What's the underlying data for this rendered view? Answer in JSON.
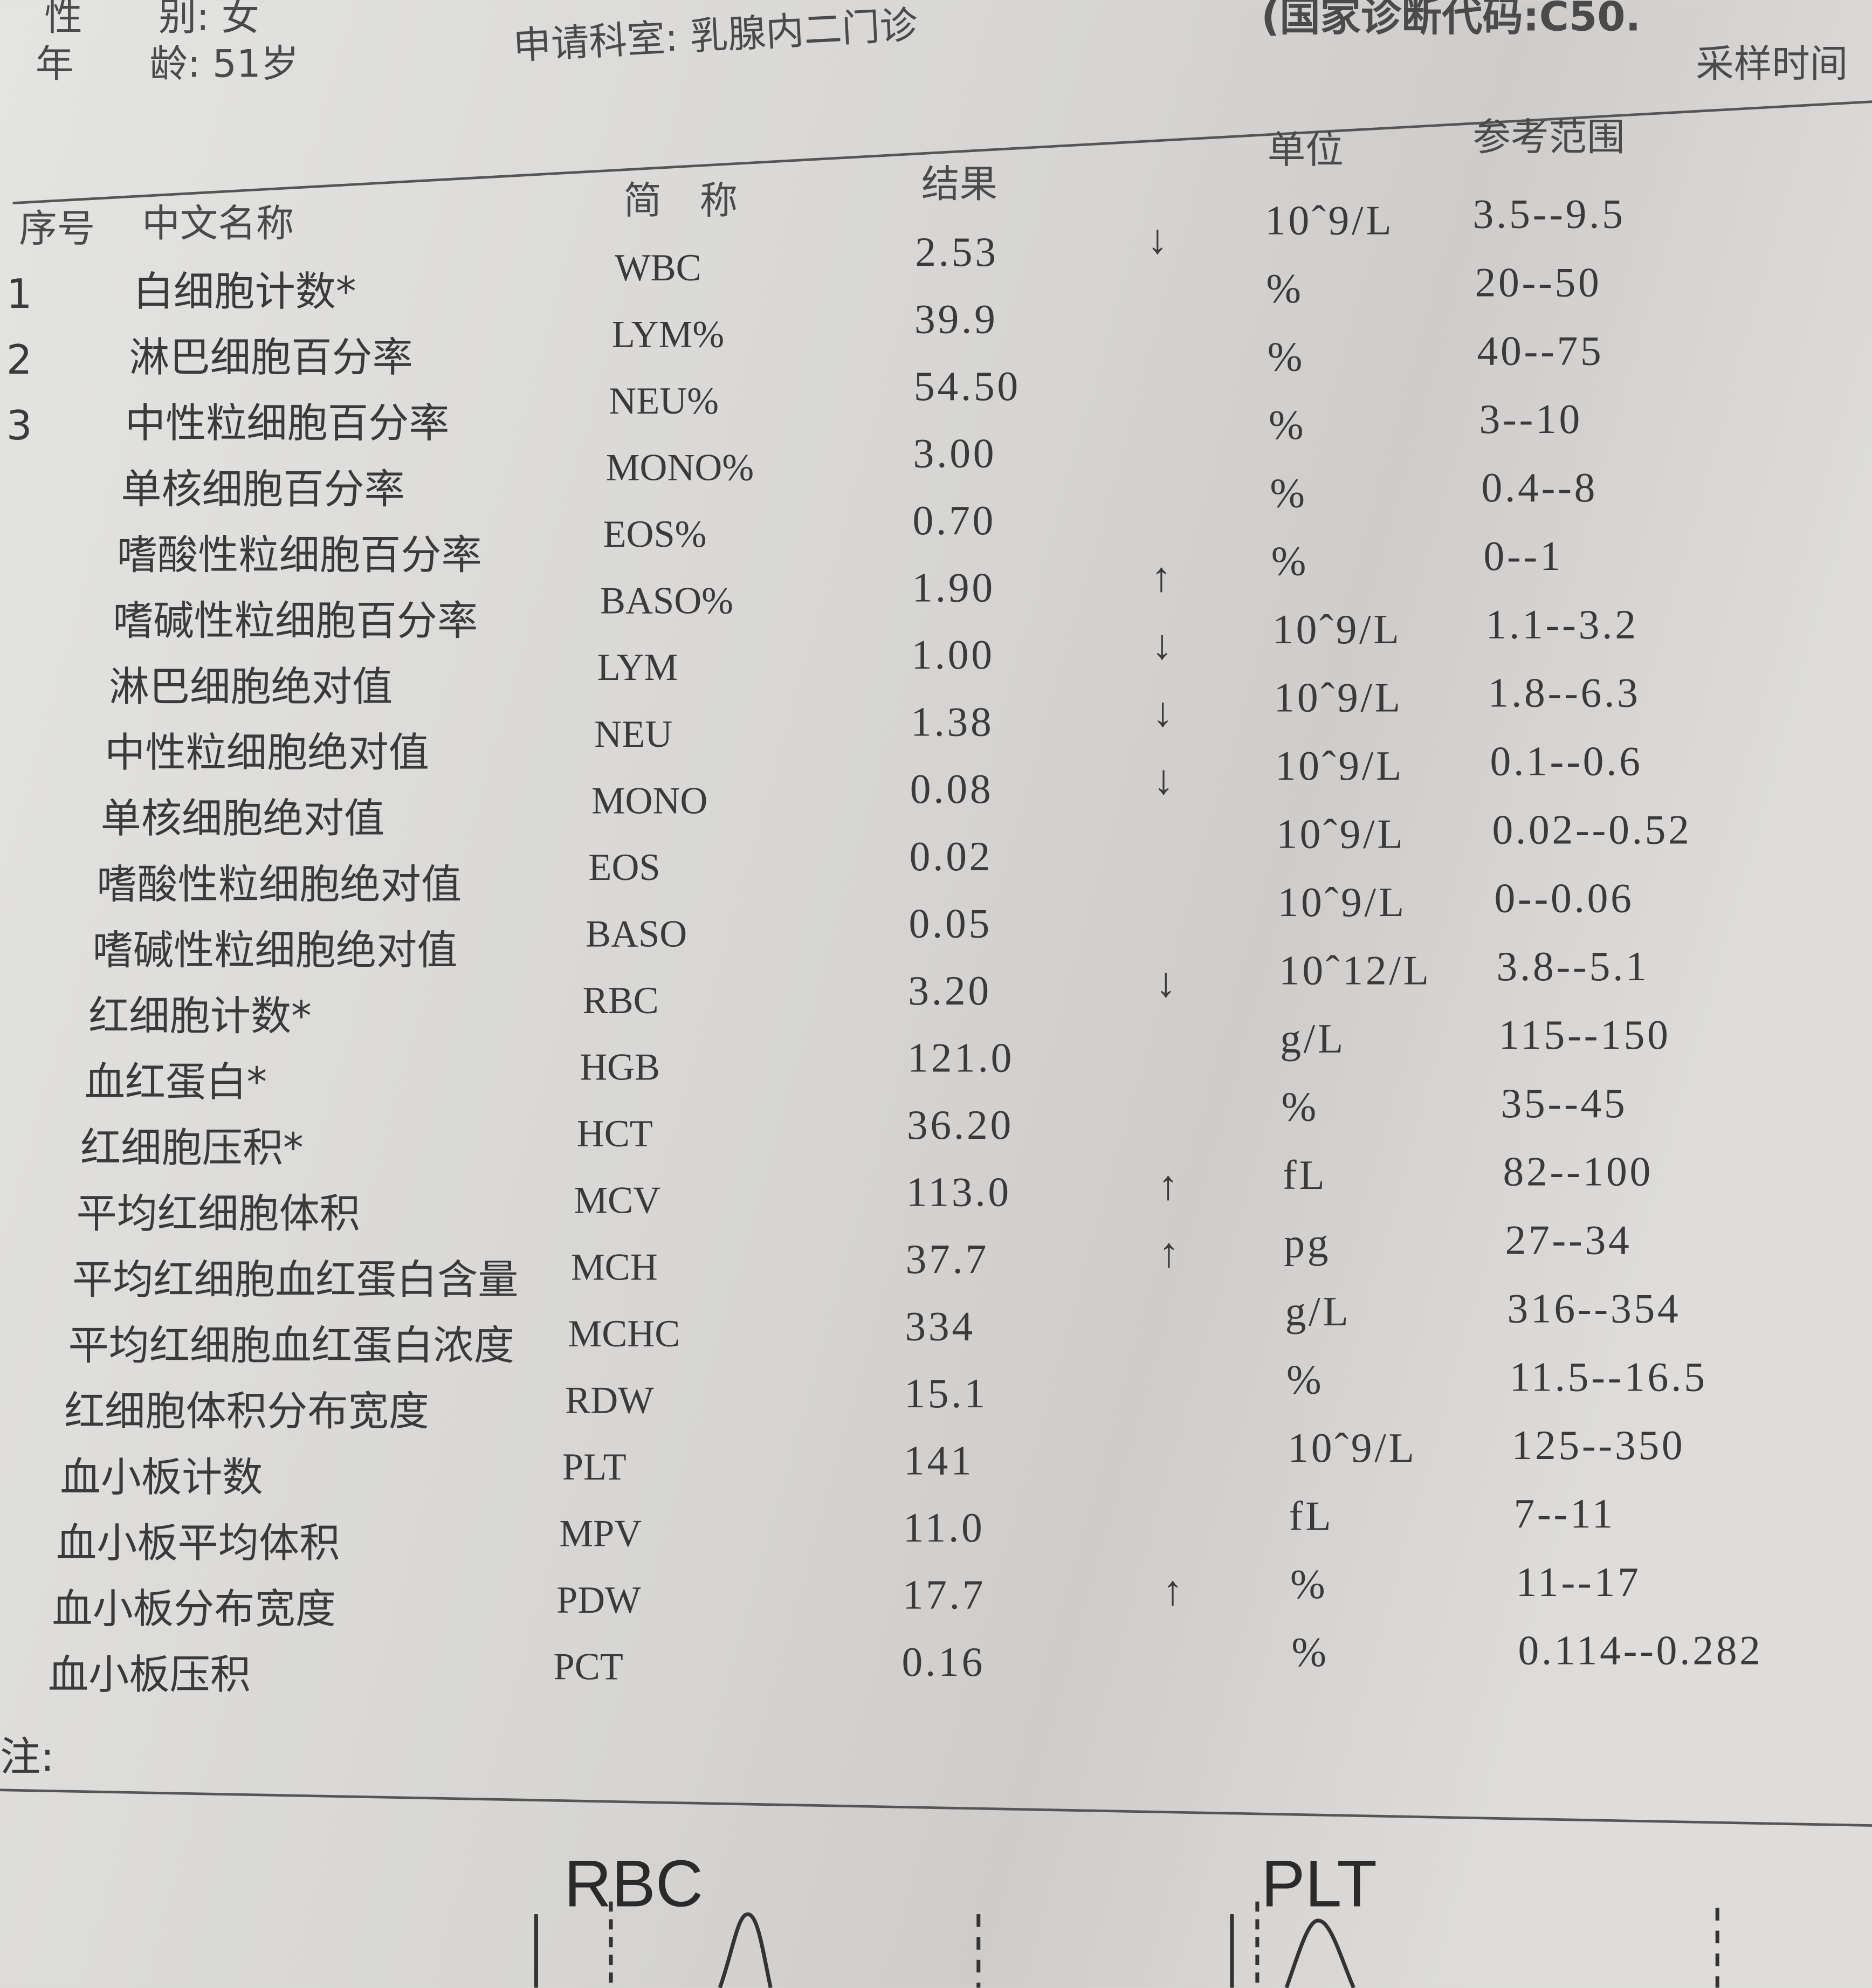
{
  "header": {
    "sex": "性　　别: 女",
    "age": "年　　龄: 51岁",
    "department": "申请科室: 乳腺内二门诊",
    "diagnosis_code": "(国家诊断代码:C50.",
    "sampling_time": "采样时间"
  },
  "table": {
    "columns": {
      "no": "序号",
      "name": "中文名称",
      "abbr": "简　称",
      "result": "结果",
      "unit": "单位",
      "range": "参考范围"
    },
    "rows": [
      {
        "no": "1",
        "name": "白细胞计数*",
        "abbr": "WBC",
        "result": "2.53",
        "flag": "↓",
        "unit": "10ˆ9/L",
        "range": "3.5--9.5"
      },
      {
        "no": "2",
        "name": "淋巴细胞百分率",
        "abbr": "LYM%",
        "result": "39.9",
        "unit": "%",
        "range": "20--50"
      },
      {
        "no": "3",
        "name": "中性粒细胞百分率",
        "abbr": "NEU%",
        "result": "54.50",
        "unit": "%",
        "range": "40--75"
      },
      {
        "name": "单核细胞百分率",
        "abbr": "MONO%",
        "result": "3.00",
        "unit": "%",
        "range": "3--10"
      },
      {
        "name": "嗜酸性粒细胞百分率",
        "abbr": "EOS%",
        "result": "0.70",
        "unit": "%",
        "range": "0.4--8"
      },
      {
        "name": "嗜碱性粒细胞百分率",
        "abbr": "BASO%",
        "result": "1.90",
        "flag": "↑",
        "unit": "%",
        "range": "0--1"
      },
      {
        "name": "淋巴细胞绝对值",
        "abbr": "LYM",
        "result": "1.00",
        "flag": "↓",
        "unit": "10ˆ9/L",
        "range": "1.1--3.2"
      },
      {
        "name": "中性粒细胞绝对值",
        "abbr": "NEU",
        "result": "1.38",
        "flag": "↓",
        "unit": "10ˆ9/L",
        "range": "1.8--6.3"
      },
      {
        "name": "单核细胞绝对值",
        "abbr": "MONO",
        "result": "0.08",
        "flag": "↓",
        "unit": "10ˆ9/L",
        "range": "0.1--0.6"
      },
      {
        "name": "嗜酸性粒细胞绝对值",
        "abbr": "EOS",
        "result": "0.02",
        "unit": "10ˆ9/L",
        "range": "0.02--0.52"
      },
      {
        "name": "嗜碱性粒细胞绝对值",
        "abbr": "BASO",
        "result": "0.05",
        "unit": "10ˆ9/L",
        "range": "0--0.06"
      },
      {
        "name": "红细胞计数*",
        "abbr": "RBC",
        "result": "3.20",
        "flag": "↓",
        "unit": "10ˆ12/L",
        "range": "3.8--5.1"
      },
      {
        "name": "血红蛋白*",
        "abbr": "HGB",
        "result": "121.0",
        "unit": "g/L",
        "range": "115--150"
      },
      {
        "name": "红细胞压积*",
        "abbr": "HCT",
        "result": "36.20",
        "unit": "%",
        "range": "35--45"
      },
      {
        "name": "平均红细胞体积",
        "abbr": "MCV",
        "result": "113.0",
        "flag": "↑",
        "unit": "fL",
        "range": "82--100"
      },
      {
        "name": "平均红细胞血红蛋白含量",
        "abbr": "MCH",
        "result": "37.7",
        "flag": "↑",
        "unit": "pg",
        "range": "27--34"
      },
      {
        "name": "平均红细胞血红蛋白浓度",
        "abbr": "MCHC",
        "result": "334",
        "unit": "g/L",
        "range": "316--354"
      },
      {
        "name": "红细胞体积分布宽度",
        "abbr": "RDW",
        "result": "15.1",
        "unit": "%",
        "range": "11.5--16.5"
      },
      {
        "name": "血小板计数",
        "abbr": "PLT",
        "result": "141",
        "unit": "10ˆ9/L",
        "range": "125--350"
      },
      {
        "name": "血小板平均体积",
        "abbr": "MPV",
        "result": "11.0",
        "unit": "fL",
        "range": "7--11"
      },
      {
        "name": "血小板分布宽度",
        "abbr": "PDW",
        "result": "17.7",
        "flag": "↑",
        "unit": "%",
        "range": "11--17"
      },
      {
        "name": "血小板压积",
        "abbr": "PCT",
        "result": "0.16",
        "unit": "%",
        "range": "0.114--0.282"
      }
    ]
  },
  "note": "注:",
  "histograms": {
    "rbc_label": "RBC",
    "plt_label": "PLT"
  }
}
